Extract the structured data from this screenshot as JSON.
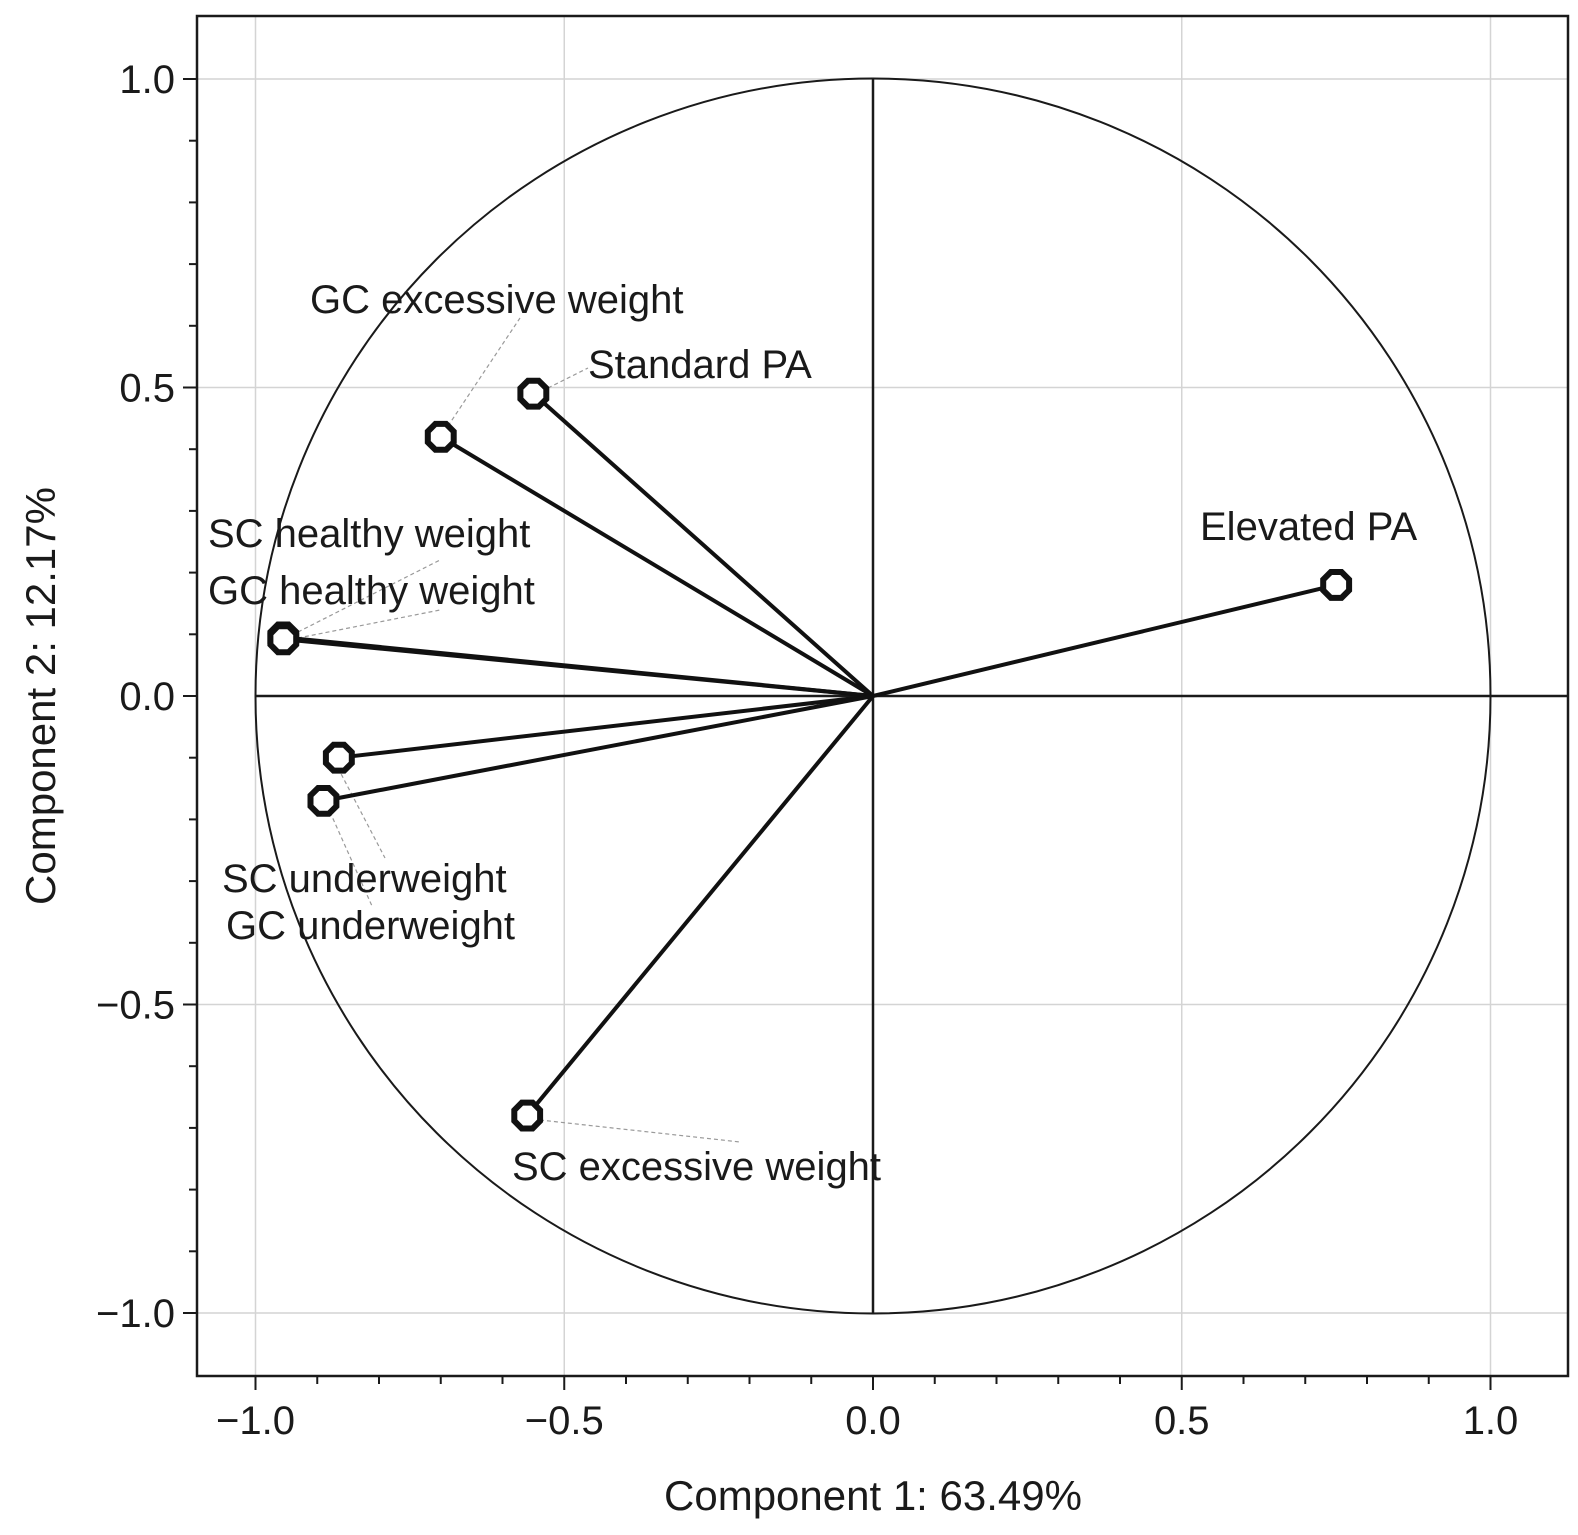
{
  "chart_data": {
    "type": "scatter",
    "subtype": "pca-correlation-circle",
    "xlabel": "Component 1: 63.49%",
    "ylabel": "Component  2: 12.17%",
    "xlim": [
      -1.1,
      1.1
    ],
    "ylim": [
      -1.1,
      1.1
    ],
    "x_ticks": [
      -1.0,
      -0.5,
      0.0,
      0.5,
      1.0
    ],
    "y_ticks": [
      -1.0,
      -0.5,
      0.0,
      0.5,
      1.0
    ],
    "x_tick_labels": [
      "−1.0",
      "−0.5",
      "0.0",
      "0.5",
      "1.0"
    ],
    "y_tick_labels": [
      "−1.0",
      "−0.5",
      "0.0",
      "0.5",
      "1.0"
    ],
    "grid": true,
    "unit_circle": true,
    "points": [
      {
        "name": "Standard PA",
        "x": -0.55,
        "y": 0.49
      },
      {
        "name": "GC excessive weight",
        "x": -0.7,
        "y": 0.42
      },
      {
        "name": "Elevated PA",
        "x": 0.75,
        "y": 0.18
      },
      {
        "name": "SC healthy weight",
        "x": -0.955,
        "y": 0.095
      },
      {
        "name": "GC healthy weight",
        "x": -0.955,
        "y": 0.092
      },
      {
        "name": "SC underweight",
        "x": -0.865,
        "y": -0.1
      },
      {
        "name": "GC underweight",
        "x": -0.89,
        "y": -0.17
      },
      {
        "name": "SC excessive weight",
        "x": -0.56,
        "y": -0.68
      }
    ]
  }
}
